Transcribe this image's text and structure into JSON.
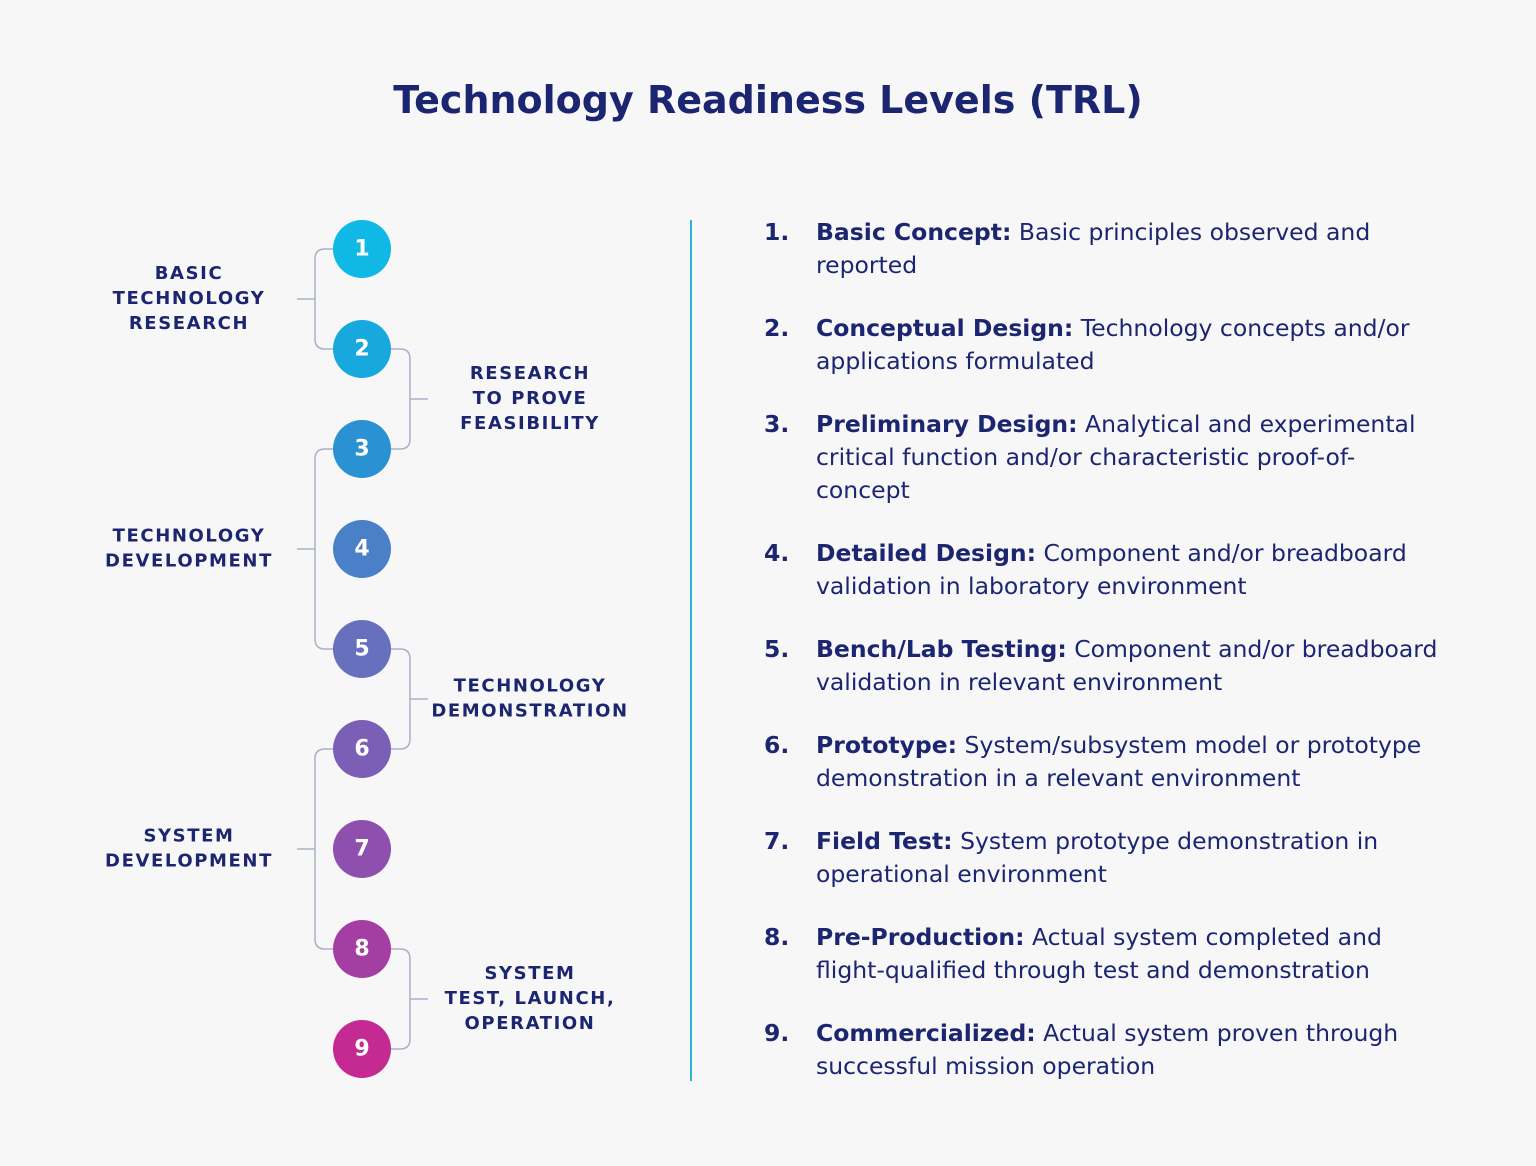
{
  "header": {
    "title": "Technology Readiness Levels (TRL)"
  },
  "levels": [
    {
      "label": "1",
      "color": "#10b8e6"
    },
    {
      "label": "2",
      "color": "#17a8de"
    },
    {
      "label": "3",
      "color": "#2a92d2"
    },
    {
      "label": "4",
      "color": "#4980c8"
    },
    {
      "label": "5",
      "color": "#6670bd"
    },
    {
      "label": "6",
      "color": "#7b5fb6"
    },
    {
      "label": "7",
      "color": "#8e4fae"
    },
    {
      "label": "8",
      "color": "#a53ea3"
    },
    {
      "label": "9",
      "color": "#c42a92"
    }
  ],
  "left_groups": [
    {
      "lines": [
        "BASIC",
        "TECHNOLOGY",
        "RESEARCH"
      ]
    },
    {
      "lines": [
        "TECHNOLOGY",
        "DEVELOPMENT"
      ]
    },
    {
      "lines": [
        "SYSTEM",
        "DEVELOPMENT"
      ]
    }
  ],
  "right_groups": [
    {
      "lines": [
        "RESEARCH",
        "TO PROVE",
        "FEASIBILITY"
      ]
    },
    {
      "lines": [
        "TECHNOLOGY",
        "DEMONSTRATION"
      ]
    },
    {
      "lines": [
        "SYSTEM",
        "TEST, LAUNCH,",
        "OPERATION"
      ]
    }
  ],
  "items": [
    {
      "number": "1.",
      "term": "Basic Concept:",
      "description": "Basic principles observed and reported"
    },
    {
      "number": "2.",
      "term": "Conceptual Design:",
      "description": "Technology concepts and/or applications formulated"
    },
    {
      "number": "3.",
      "term": "Preliminary Design:",
      "description": "Analytical and experimental critical function and/or characteristic proof-of-concept"
    },
    {
      "number": "4.",
      "term": "Detailed Design:",
      "description": "Component and/or breadboard validation in laboratory environment"
    },
    {
      "number": "5.",
      "term": "Bench/Lab Testing:",
      "description": "Component and/or breadboard validation in relevant environment"
    },
    {
      "number": "6.",
      "term": "Prototype:",
      "description": "System/subsystem model or prototype demonstration in a relevant environment"
    },
    {
      "number": "7.",
      "term": "Field Test:",
      "description": "System prototype demonstration in operational environment"
    },
    {
      "number": "8.",
      "term": "Pre-Production:",
      "description": "Actual system completed and flight-qualified through test and demonstration"
    },
    {
      "number": "9.",
      "term": "Commercialized:",
      "description": "Actual system proven through successful mission operation"
    }
  ]
}
